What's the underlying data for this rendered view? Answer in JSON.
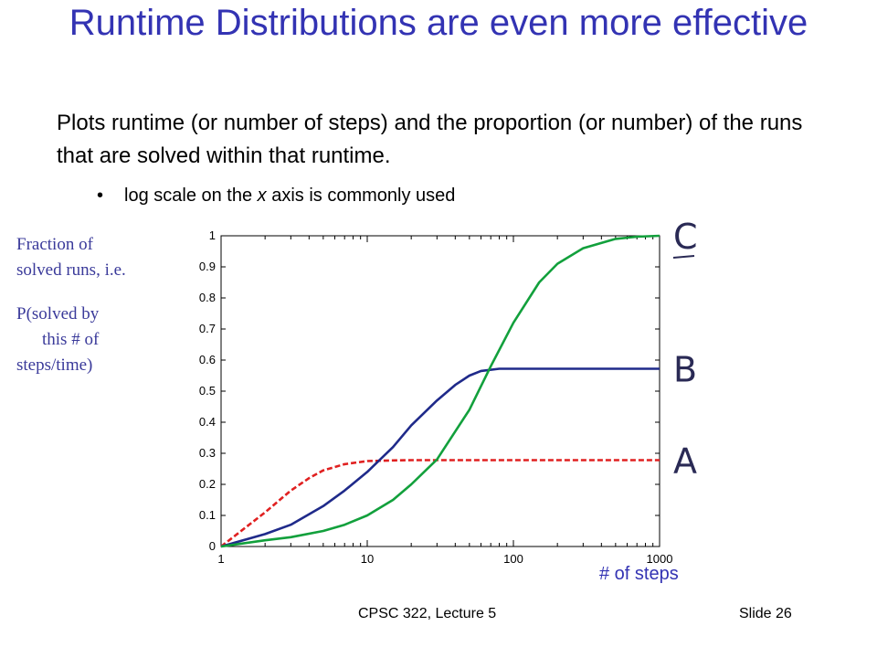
{
  "slide": {
    "title": "Runtime Distributions are even more effective",
    "body": "Plots runtime (or number of steps) and the proportion (or number) of the runs that are solved within that runtime.",
    "bullet": "log scale on the x axis is commonly used",
    "bullet_italic_word": "x",
    "ylabel_lines": [
      "Fraction of",
      "solved runs, i.e.",
      "P(solved by",
      "this # of",
      "steps/time)"
    ],
    "xlabel": "# of steps",
    "footer_course": "CPSC 322, Lecture 5",
    "footer_slide": "Slide 26"
  },
  "chart_data": {
    "type": "line",
    "xscale": "log",
    "xlim": [
      1,
      1000
    ],
    "ylim": [
      0,
      1
    ],
    "x_ticks": [
      "1",
      "10",
      "100",
      "1000"
    ],
    "y_ticks": [
      "0",
      "0.1",
      "0.2",
      "0.3",
      "0.4",
      "0.5",
      "0.6",
      "0.7",
      "0.8",
      "0.9",
      "1"
    ],
    "series": [
      {
        "name": "A",
        "color": "#e02020",
        "dash": true,
        "x": [
          1,
          2,
          3,
          4,
          5,
          7,
          10,
          15,
          20,
          50,
          100,
          300,
          1000
        ],
        "y": [
          0.0,
          0.11,
          0.18,
          0.22,
          0.245,
          0.265,
          0.275,
          0.277,
          0.278,
          0.278,
          0.278,
          0.278,
          0.278
        ]
      },
      {
        "name": "B",
        "color": "#1f2a8a",
        "dash": false,
        "x": [
          1,
          2,
          3,
          5,
          7,
          10,
          15,
          20,
          30,
          40,
          50,
          60,
          80,
          100,
          200,
          500,
          1000
        ],
        "y": [
          0.0,
          0.04,
          0.07,
          0.13,
          0.18,
          0.24,
          0.32,
          0.39,
          0.47,
          0.52,
          0.55,
          0.565,
          0.572,
          0.572,
          0.572,
          0.572,
          0.572
        ]
      },
      {
        "name": "C",
        "color": "#12a03c",
        "dash": false,
        "x": [
          1,
          2,
          3,
          5,
          7,
          10,
          15,
          20,
          30,
          50,
          70,
          100,
          150,
          200,
          300,
          500,
          700,
          1000
        ],
        "y": [
          0.0,
          0.02,
          0.03,
          0.05,
          0.07,
          0.1,
          0.15,
          0.2,
          0.28,
          0.44,
          0.58,
          0.72,
          0.85,
          0.91,
          0.96,
          0.99,
          0.997,
          1.0
        ]
      }
    ]
  }
}
